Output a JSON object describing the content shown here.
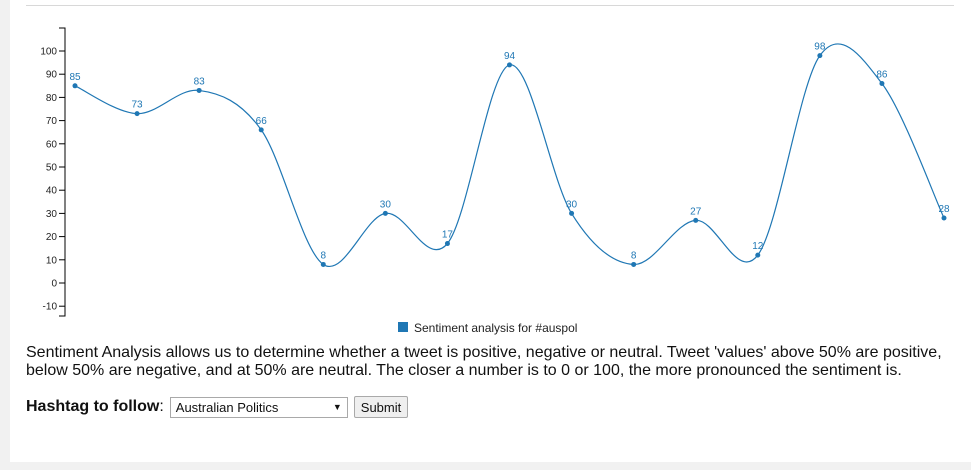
{
  "chart_data": {
    "type": "line",
    "values": [
      85,
      73,
      83,
      66,
      8,
      30,
      17,
      94,
      30,
      8,
      27,
      12,
      98,
      86,
      28
    ],
    "ylim": [
      -10,
      100
    ],
    "yticks": [
      -10,
      0,
      10,
      20,
      30,
      40,
      50,
      60,
      70,
      80,
      90,
      100
    ],
    "series": [
      {
        "name": "Sentiment analysis for #auspol"
      }
    ],
    "legend_position": "bottom-center",
    "color": "#1f77b4",
    "grid": false,
    "point_labels": true
  },
  "description": "Sentiment Analysis allows us to determine whether a tweet is positive, negative or neutral. Tweet 'values' above 50% are positive, below 50% are negative, and at 50% are neutral. The closer a number is to 0 or 100, the more pronounced the sentiment is.",
  "form": {
    "label": "Hashtag to follow",
    "selected": "Australian Politics",
    "submit_label": "Submit"
  }
}
